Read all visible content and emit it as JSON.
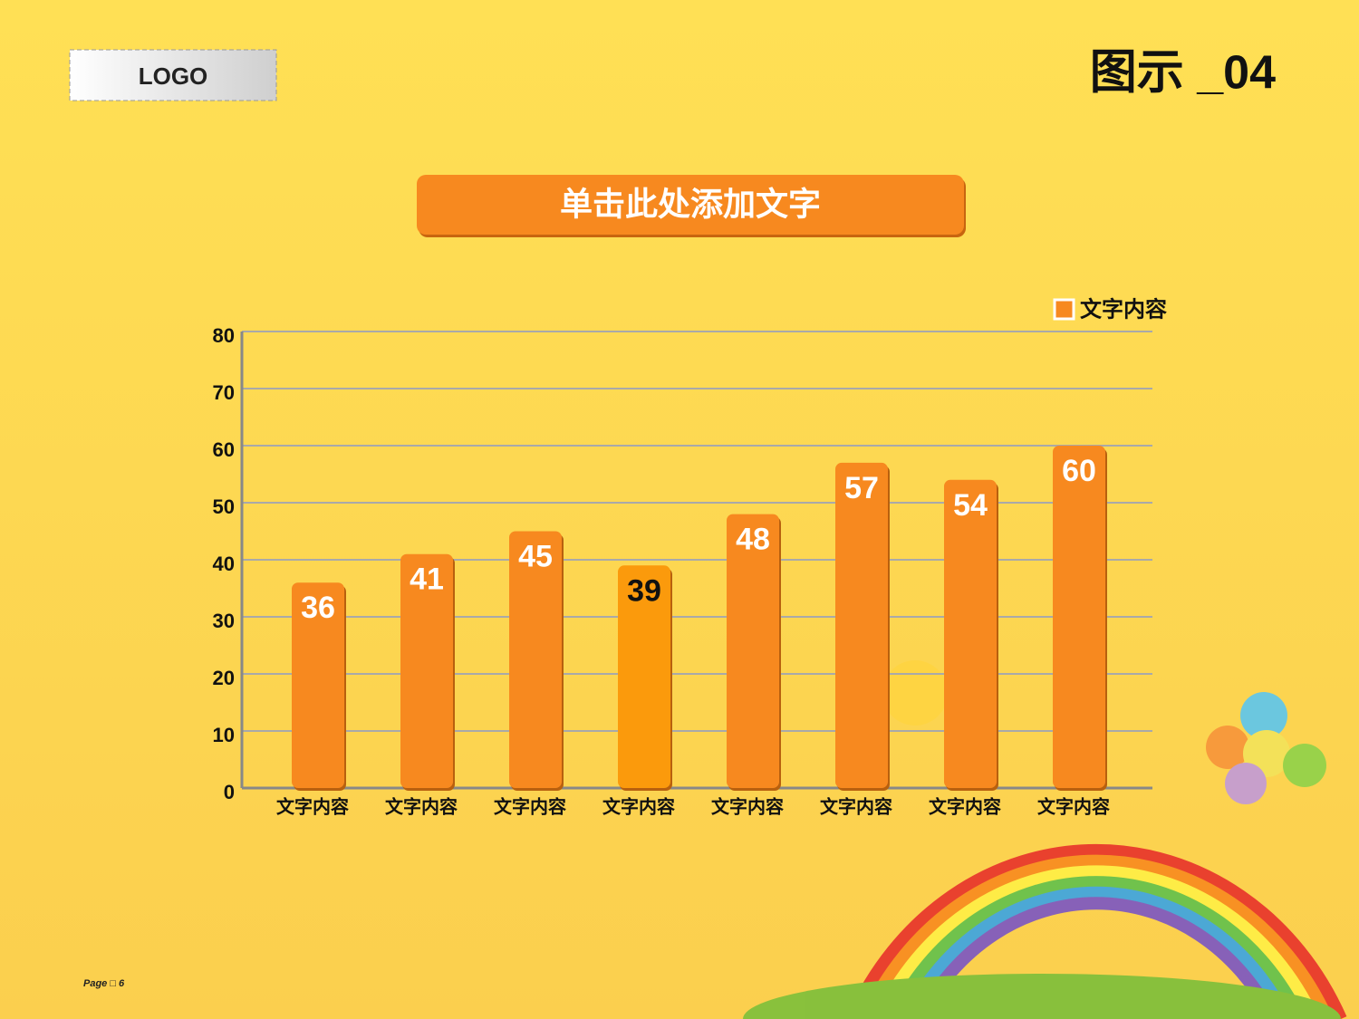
{
  "logo": "LOGO",
  "heading": "图示 _04",
  "banner": "单击此处添加文字",
  "page": "Page □ 6",
  "chart_data": {
    "type": "bar",
    "categories": [
      "文字内容",
      "文字内容",
      "文字内容",
      "文字内容",
      "文字内容",
      "文字内容",
      "文字内容",
      "文字内容"
    ],
    "series": [
      {
        "name": "文字内容",
        "color": "#f7891f",
        "values": [
          36,
          41,
          45,
          39,
          48,
          57,
          54,
          60
        ]
      }
    ],
    "bar_colors": [
      "#f7891f",
      "#f7891f",
      "#f7891f",
      "#fb9a0c",
      "#f7891f",
      "#f7891f",
      "#f7891f",
      "#f7891f"
    ],
    "value_label_colors": [
      "#ffffff",
      "#ffffff",
      "#ffffff",
      "#111111",
      "#ffffff",
      "#ffffff",
      "#ffffff",
      "#ffffff"
    ],
    "ylim": [
      0,
      80
    ],
    "yticks": [
      0,
      10,
      20,
      30,
      40,
      50,
      60,
      70,
      80
    ],
    "grid": true,
    "legend": "top-right"
  }
}
